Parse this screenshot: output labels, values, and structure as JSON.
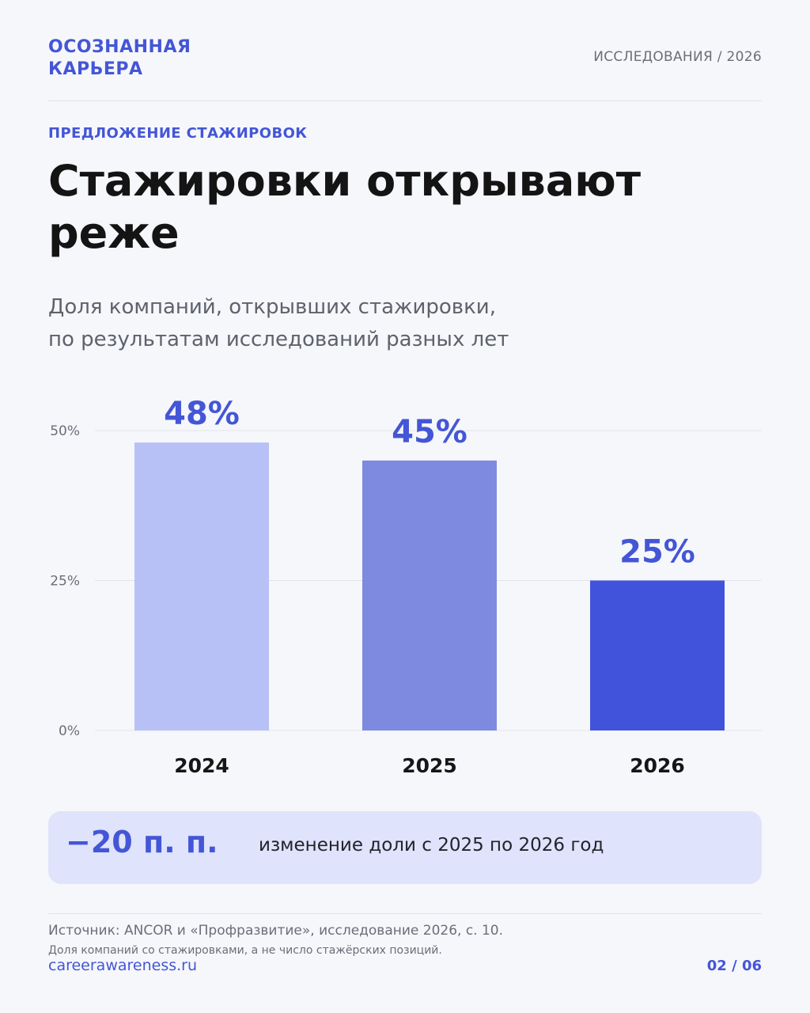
{
  "brand": {
    "line1": "ОСОЗНАННАЯ",
    "line2": "КАРЬЕРА"
  },
  "header": {
    "section": "ИССЛЕДОВАНИЯ / 2026"
  },
  "eyebrow": "ПРЕДЛОЖЕНИЕ СТАЖИРОВОК",
  "title": "Стажировки открывают реже",
  "subtitle_line1": "Доля компаний, открывших стажировки,",
  "subtitle_line2": "по результатам исследований разных лет",
  "chart_data": {
    "type": "bar",
    "categories": [
      "2024",
      "2025",
      "2026"
    ],
    "values": [
      48,
      45,
      25
    ],
    "value_labels": [
      "48%",
      "45%",
      "25%"
    ],
    "bar_colors": [
      "#b8c1f5",
      "#7d8ae0",
      "#4253db"
    ],
    "yticks": [
      0,
      25,
      50
    ],
    "ytick_labels": [
      "0%",
      "25%",
      "50%"
    ],
    "ylim": [
      0,
      50
    ],
    "grid": true
  },
  "callout": {
    "value": "−20 п. п.",
    "text": "изменение доли с 2025 по 2026 год"
  },
  "footer": {
    "source": "Источник: ANCOR и «Профразвитие», исследование 2026, с. 10.",
    "note": "Доля компаний со стажировками, а не число стажёрских позиций.",
    "site": "careerawareness.ru",
    "page": "02 / 06"
  },
  "colors": {
    "accent": "#4456d6",
    "callout_bg": "#dfe3fb",
    "background": "#f6f7fb"
  }
}
